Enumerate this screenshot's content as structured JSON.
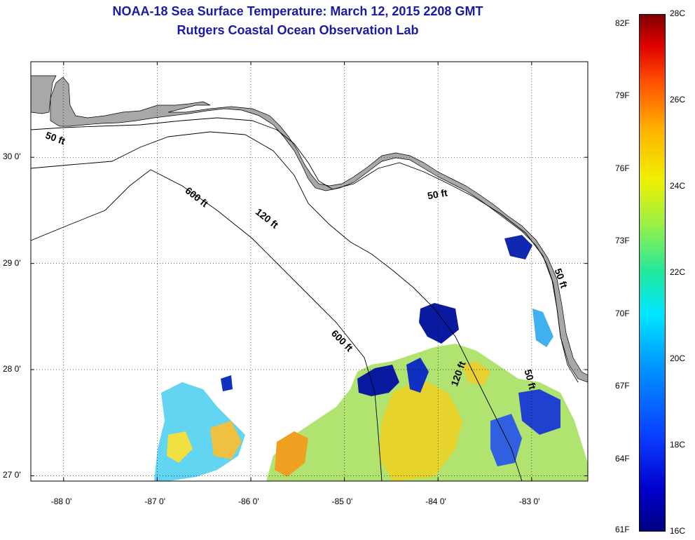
{
  "header": {
    "title": "NOAA-18 Sea Surface Temperature:  March 12, 2015 2208 GMT",
    "subtitle": "Rutgers Coastal Ocean Observation Lab"
  },
  "map": {
    "region": "Gulf of Mexico - Florida Big Bend",
    "lon_range": [
      -88.35,
      -82.4
    ],
    "lat_range": [
      26.95,
      30.9
    ],
    "land_color": "#a8a8a8",
    "nodata_color": "#ffffff",
    "x_ticks": [
      {
        "lon": -88,
        "label": "-88 0'"
      },
      {
        "lon": -87,
        "label": "-87 0'"
      },
      {
        "lon": -86,
        "label": "-86 0'"
      },
      {
        "lon": -85,
        "label": "-85 0'"
      },
      {
        "lon": -84,
        "label": "-84 0'"
      },
      {
        "lon": -83,
        "label": "-83 0'"
      }
    ],
    "y_ticks": [
      {
        "lat": 30,
        "label": "30 0'"
      },
      {
        "lat": 29,
        "label": "29 0'"
      },
      {
        "lat": 28,
        "label": "28 0'"
      },
      {
        "lat": 27,
        "label": "27 0'"
      }
    ],
    "contour_labels": [
      {
        "text": "50 ft",
        "lon": -88.1,
        "lat": 30.15,
        "angle": 20
      },
      {
        "text": "600 ft",
        "lon": -86.6,
        "lat": 29.6,
        "angle": 38
      },
      {
        "text": "120 ft",
        "lon": -85.85,
        "lat": 29.4,
        "angle": 38
      },
      {
        "text": "50 ft",
        "lon": -84.0,
        "lat": 29.62,
        "angle": -10
      },
      {
        "text": "600 ft",
        "lon": -85.05,
        "lat": 28.25,
        "angle": 45
      },
      {
        "text": "120 ft",
        "lon": -83.75,
        "lat": 27.95,
        "angle": -70
      },
      {
        "text": "50 ft",
        "lon": -83.05,
        "lat": 27.9,
        "angle": 75
      },
      {
        "text": "50 ft",
        "lon": -82.72,
        "lat": 28.85,
        "angle": 70
      }
    ]
  },
  "colorbar": {
    "fahrenheit_labels": [
      {
        "value": 82,
        "label": "82F"
      },
      {
        "value": 79,
        "label": "79F"
      },
      {
        "value": 76,
        "label": "76F"
      },
      {
        "value": 73,
        "label": "73F"
      },
      {
        "value": 70,
        "label": "70F"
      },
      {
        "value": 67,
        "label": "67F"
      },
      {
        "value": 64,
        "label": "64F"
      },
      {
        "value": 61,
        "label": "61F"
      }
    ],
    "celsius_labels": [
      {
        "value": 28,
        "label": "28C"
      },
      {
        "value": 26,
        "label": "26C"
      },
      {
        "value": 24,
        "label": "24C"
      },
      {
        "value": 22,
        "label": "22C"
      },
      {
        "value": 20,
        "label": "20C"
      },
      {
        "value": 18,
        "label": "18C"
      },
      {
        "value": 16,
        "label": "16C"
      }
    ],
    "range_c": [
      16,
      28
    ]
  }
}
